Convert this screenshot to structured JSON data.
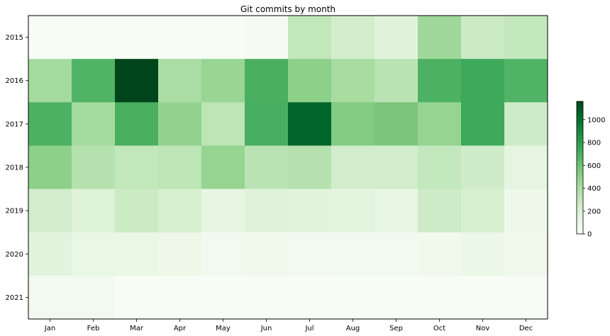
{
  "chart_data": {
    "type": "heatmap",
    "title": "Git commits by month",
    "xlabel": "",
    "ylabel": "",
    "x_categories": [
      "Jan",
      "Feb",
      "Mar",
      "Apr",
      "May",
      "Jun",
      "Jul",
      "Aug",
      "Sep",
      "Oct",
      "Nov",
      "Dec"
    ],
    "y_categories": [
      "2015",
      "2016",
      "2017",
      "2018",
      "2019",
      "2020",
      "2021"
    ],
    "values": [
      [
        0,
        0,
        0,
        0,
        0,
        20,
        310,
        230,
        170,
        440,
        270,
        300
      ],
      [
        420,
        680,
        1160,
        400,
        460,
        700,
        500,
        410,
        340,
        690,
        740,
        680
      ],
      [
        690,
        420,
        700,
        480,
        330,
        710,
        1040,
        530,
        560,
        470,
        740,
        260
      ],
      [
        500,
        360,
        310,
        330,
        470,
        340,
        360,
        240,
        240,
        300,
        250,
        140
      ],
      [
        240,
        180,
        270,
        220,
        130,
        170,
        160,
        150,
        120,
        260,
        220,
        70
      ],
      [
        160,
        110,
        110,
        80,
        50,
        60,
        40,
        50,
        50,
        60,
        100,
        60
      ],
      [
        40,
        40,
        0,
        0,
        0,
        0,
        0,
        0,
        0,
        0,
        0,
        0
      ]
    ],
    "colorbar": {
      "range": [
        0,
        1160
      ],
      "ticks": [
        0,
        200,
        400,
        600,
        800,
        1000
      ],
      "colormap": "Greens"
    },
    "grid": false
  }
}
